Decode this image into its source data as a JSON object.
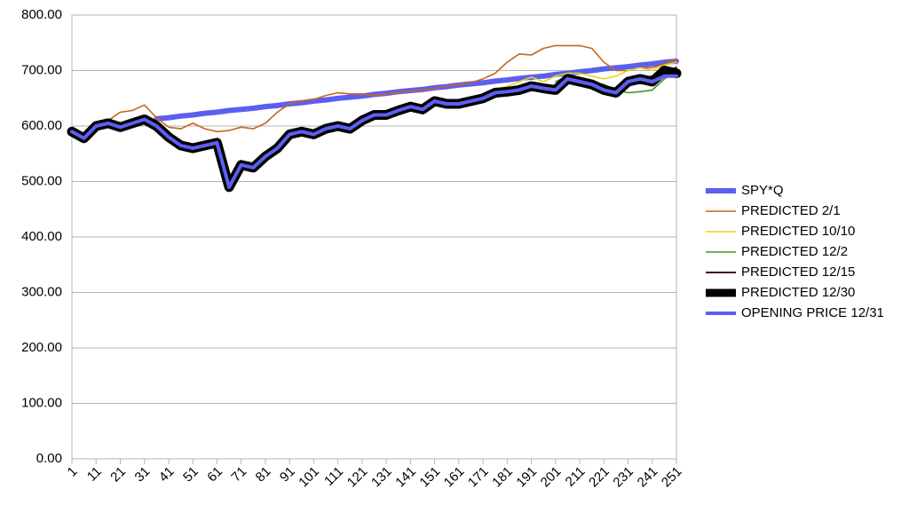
{
  "chart_data": {
    "type": "line",
    "x": [
      1,
      6,
      11,
      16,
      21,
      26,
      31,
      36,
      41,
      46,
      51,
      56,
      61,
      66,
      71,
      76,
      81,
      86,
      91,
      96,
      101,
      106,
      111,
      116,
      121,
      126,
      131,
      136,
      141,
      146,
      151,
      156,
      161,
      166,
      171,
      176,
      181,
      186,
      191,
      196,
      201,
      206,
      211,
      216,
      221,
      226,
      231,
      236,
      241,
      246,
      251
    ],
    "xlim": [
      1,
      251
    ],
    "xticks": [
      1,
      11,
      21,
      31,
      41,
      51,
      61,
      71,
      81,
      91,
      101,
      111,
      121,
      131,
      141,
      151,
      161,
      171,
      181,
      191,
      201,
      211,
      221,
      231,
      241,
      251
    ],
    "ylim": [
      0,
      800
    ],
    "yticks": [
      {
        "value": 0,
        "label": "0.00"
      },
      {
        "value": 100,
        "label": "100.00"
      },
      {
        "value": 200,
        "label": "200.00"
      },
      {
        "value": 300,
        "label": "300.00"
      },
      {
        "value": 400,
        "label": "400.00"
      },
      {
        "value": 500,
        "label": "500.00"
      },
      {
        "value": 600,
        "label": "600.00"
      },
      {
        "value": 700,
        "label": "700.00"
      },
      {
        "value": 800,
        "label": "800.00"
      }
    ],
    "grid": true,
    "legend": "right",
    "series": [
      {
        "name": "SPY*Q",
        "color": "#5b5ff0",
        "width": 6,
        "values": [
          null,
          null,
          null,
          null,
          null,
          null,
          null,
          613,
          615,
          618,
          620,
          623,
          625,
          628,
          630,
          632,
          635,
          637,
          640,
          642,
          645,
          647,
          650,
          652,
          654,
          657,
          659,
          662,
          664,
          666,
          669,
          671,
          674,
          676,
          678,
          681,
          683,
          686,
          688,
          690,
          693,
          695,
          698,
          700,
          703,
          705,
          707,
          710,
          712,
          715,
          717
        ]
      },
      {
        "name": "PREDICTED 2/1",
        "color": "#c8651b",
        "width": 1.6,
        "values": [
          null,
          null,
          null,
          610,
          625,
          628,
          638,
          615,
          598,
          595,
          605,
          595,
          590,
          592,
          598,
          595,
          605,
          625,
          640,
          645,
          648,
          655,
          660,
          658,
          658,
          655,
          658,
          660,
          663,
          665,
          668,
          672,
          675,
          678,
          685,
          695,
          715,
          730,
          728,
          740,
          745,
          745,
          745,
          740,
          715,
          700,
          700,
          705,
          705,
          712,
          720
        ]
      },
      {
        "name": "PREDICTED 10/10",
        "color": "#e8d31e",
        "width": 1.6,
        "values": [
          null,
          null,
          null,
          null,
          null,
          null,
          null,
          null,
          null,
          null,
          null,
          null,
          null,
          null,
          null,
          null,
          null,
          null,
          null,
          null,
          null,
          null,
          null,
          null,
          null,
          null,
          null,
          null,
          null,
          null,
          null,
          null,
          null,
          null,
          null,
          665,
          672,
          680,
          688,
          680,
          690,
          695,
          695,
          690,
          685,
          690,
          700,
          705,
          700,
          710,
          715
        ]
      },
      {
        "name": "PREDICTED 12/2",
        "color": "#4e8f1d",
        "width": 1.6,
        "values": [
          null,
          null,
          null,
          null,
          null,
          null,
          null,
          null,
          null,
          null,
          null,
          null,
          null,
          null,
          null,
          null,
          null,
          null,
          null,
          null,
          null,
          null,
          null,
          null,
          null,
          null,
          null,
          null,
          null,
          null,
          null,
          null,
          null,
          null,
          null,
          null,
          null,
          null,
          null,
          null,
          680,
          690,
          688,
          680,
          675,
          665,
          660,
          662,
          665,
          685,
          700
        ]
      },
      {
        "name": "PREDICTED 12/15",
        "color": "#3d0a1a",
        "width": 2,
        "values": [
          null,
          null,
          null,
          null,
          null,
          null,
          null,
          null,
          null,
          null,
          null,
          null,
          null,
          null,
          null,
          null,
          null,
          null,
          null,
          null,
          null,
          null,
          null,
          null,
          null,
          null,
          null,
          null,
          null,
          null,
          null,
          null,
          null,
          null,
          null,
          null,
          null,
          null,
          null,
          null,
          null,
          null,
          null,
          null,
          null,
          null,
          680,
          685,
          690,
          700,
          705
        ]
      },
      {
        "name": "PREDICTED 12/30",
        "color": "#000000",
        "width": 11,
        "values": [
          590,
          578,
          600,
          605,
          598,
          605,
          612,
          600,
          580,
          565,
          560,
          565,
          570,
          490,
          530,
          525,
          545,
          560,
          585,
          590,
          585,
          595,
          600,
          595,
          610,
          620,
          620,
          628,
          635,
          630,
          645,
          640,
          640,
          645,
          650,
          660,
          662,
          665,
          672,
          668,
          665,
          685,
          680,
          675,
          665,
          660,
          680,
          685,
          680,
          700,
          695
        ]
      },
      {
        "name": "OPENING PRICE 12/31",
        "color": "#5b5ff0",
        "width": 4,
        "values": [
          590,
          578,
          600,
          605,
          598,
          605,
          612,
          600,
          580,
          565,
          560,
          565,
          570,
          490,
          530,
          525,
          545,
          560,
          585,
          590,
          585,
          595,
          600,
          595,
          610,
          620,
          620,
          628,
          635,
          630,
          645,
          640,
          640,
          645,
          650,
          660,
          662,
          665,
          672,
          668,
          665,
          685,
          680,
          675,
          665,
          660,
          680,
          685,
          680,
          690,
          690
        ]
      }
    ]
  }
}
